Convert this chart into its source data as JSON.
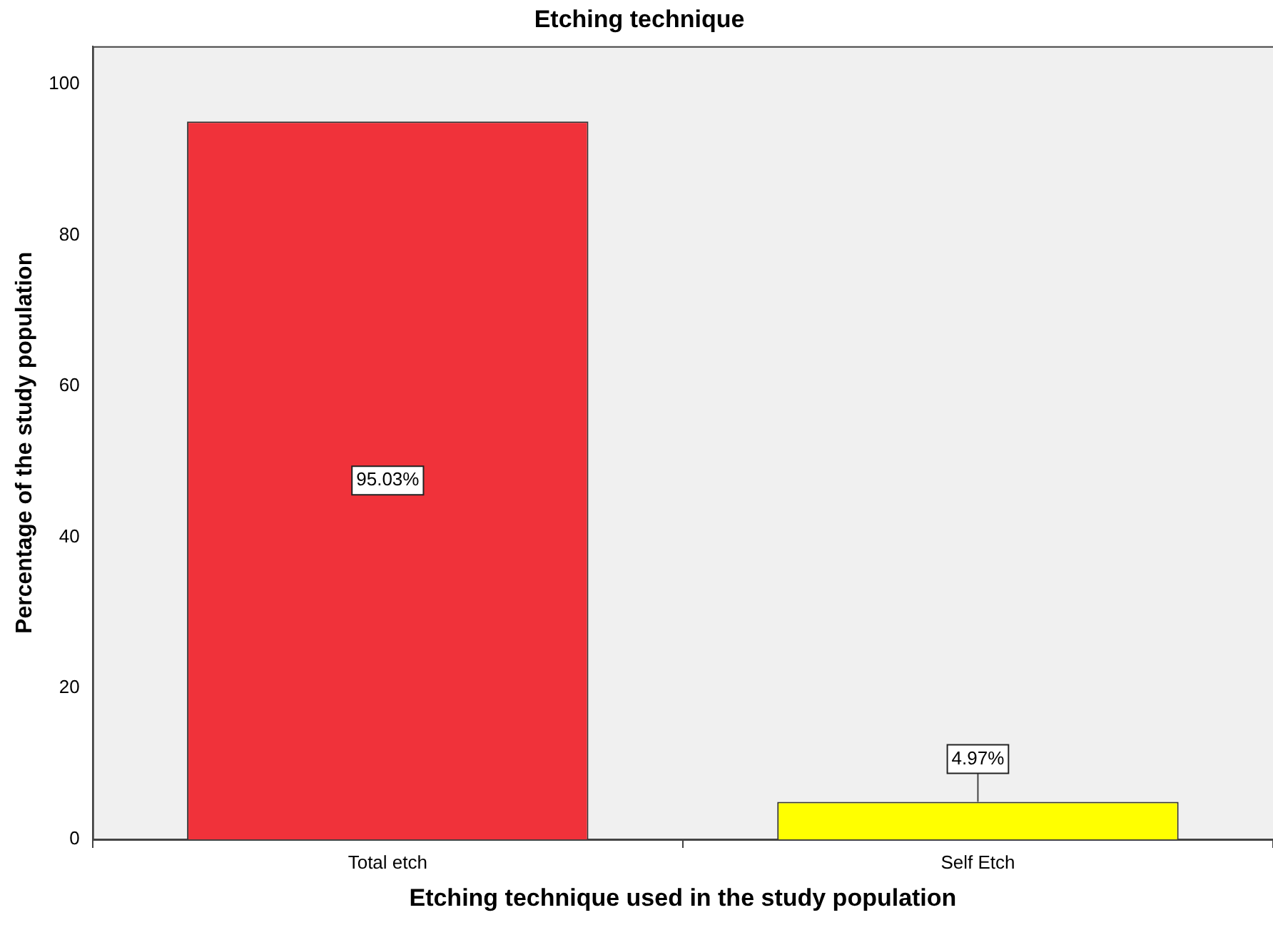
{
  "chart_data": {
    "type": "bar",
    "title": "Etching technique",
    "xlabel": "Etching technique used in the study population",
    "ylabel": "Percentage of the study population",
    "categories": [
      "Total etch",
      "Self Etch"
    ],
    "values": [
      95.03,
      4.97
    ],
    "colors": [
      "#f0323a",
      "#ffff00"
    ],
    "value_labels": [
      "95.03%",
      "4.97%"
    ],
    "ylim": [
      0,
      105
    ],
    "yticks": [
      0,
      20,
      40,
      60,
      80,
      100
    ],
    "grid": false,
    "legend": false
  }
}
